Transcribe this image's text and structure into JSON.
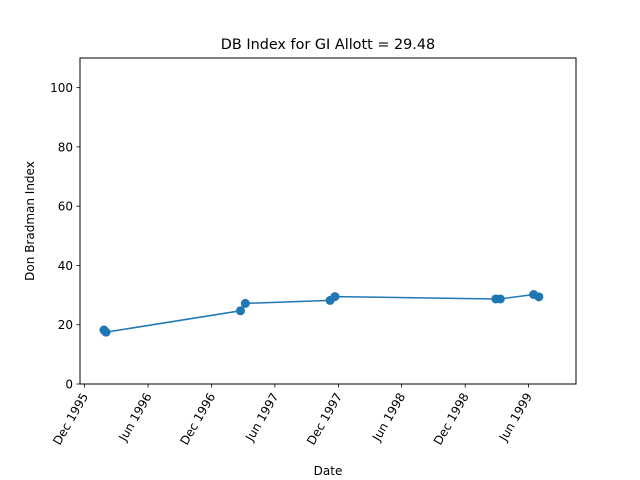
{
  "chart_data": {
    "type": "line",
    "title": "DB Index for GI Allott = 29.48",
    "xlabel": "Date",
    "ylabel": "Don Bradman Index",
    "ylim": [
      0,
      110
    ],
    "xlim": [
      "1995-11-18",
      "1999-10-16"
    ],
    "yticks": [
      0,
      20,
      40,
      60,
      80,
      100
    ],
    "xticks": [
      {
        "date": "1995-12-01",
        "label": "Dec 1995"
      },
      {
        "date": "1996-06-01",
        "label": "Jun 1996"
      },
      {
        "date": "1996-12-01",
        "label": "Dec 1996"
      },
      {
        "date": "1997-06-01",
        "label": "Jun 1997"
      },
      {
        "date": "1997-12-01",
        "label": "Dec 1997"
      },
      {
        "date": "1998-06-01",
        "label": "Jun 1998"
      },
      {
        "date": "1998-12-01",
        "label": "Dec 1998"
      },
      {
        "date": "1999-06-01",
        "label": "Jun 1999"
      }
    ],
    "grid": false,
    "color": "#1f77b4",
    "series": [
      {
        "x": [
          "1996-01-26",
          "1996-02-01",
          "1997-02-22",
          "1997-03-08",
          "1997-11-07",
          "1997-11-21",
          "1999-02-27",
          "1999-03-12",
          "1999-06-16",
          "1999-07-01"
        ],
        "y": [
          18.2,
          17.5,
          24.7,
          27.2,
          28.2,
          29.5,
          28.7,
          28.7,
          30.2,
          29.4
        ]
      }
    ]
  }
}
